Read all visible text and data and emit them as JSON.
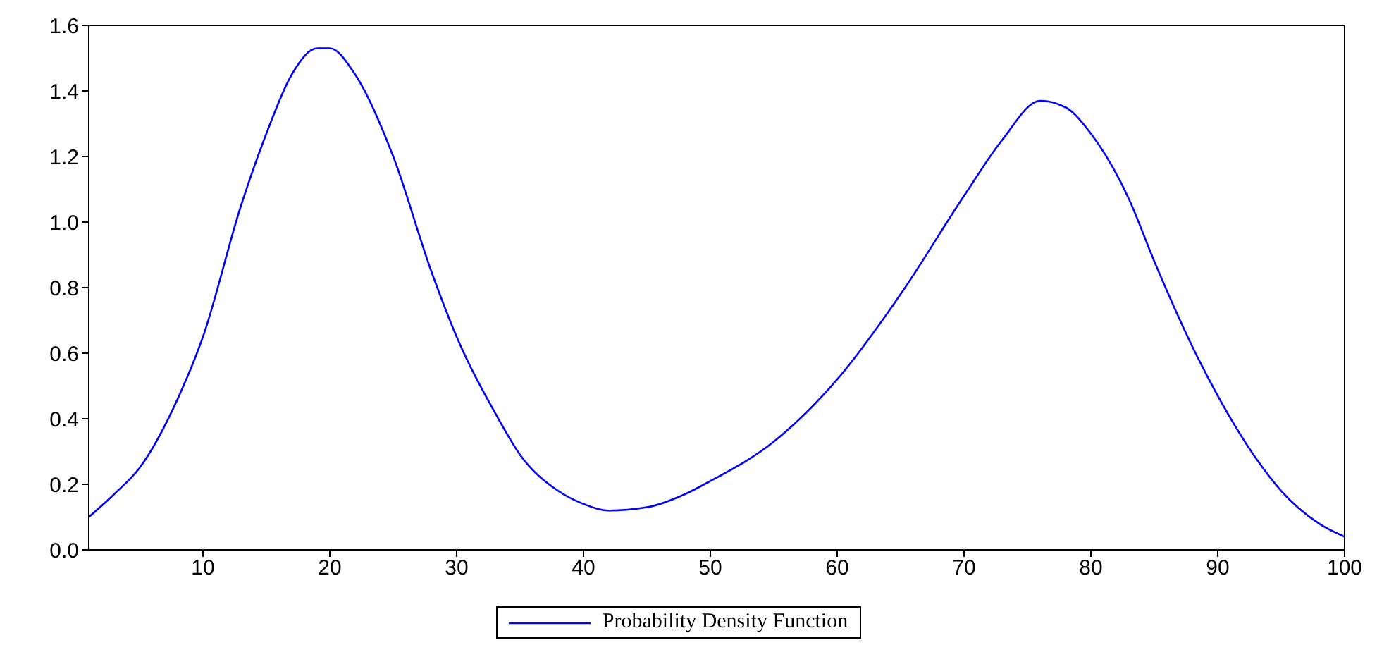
{
  "chart_data": {
    "type": "line",
    "x": [
      1,
      3,
      5,
      8,
      10,
      13,
      15,
      17,
      19,
      20,
      22,
      25,
      28,
      30,
      33,
      35,
      38,
      40,
      42,
      45,
      48,
      50,
      55,
      60,
      65,
      70,
      73,
      76,
      78,
      80,
      83,
      85,
      88,
      90,
      93,
      95,
      98,
      100
    ],
    "series": [
      {
        "name": "Probability Density Function",
        "color": "#0000ff",
        "values": [
          0.1,
          0.17,
          0.25,
          0.46,
          0.65,
          1.05,
          1.27,
          1.45,
          1.53,
          1.53,
          1.45,
          1.2,
          0.85,
          0.65,
          0.42,
          0.29,
          0.18,
          0.14,
          0.12,
          0.13,
          0.17,
          0.21,
          0.33,
          0.52,
          0.78,
          1.08,
          1.25,
          1.37,
          1.35,
          1.27,
          1.07,
          0.88,
          0.62,
          0.47,
          0.28,
          0.18,
          0.08,
          0.04
        ]
      }
    ],
    "xlim": [
      1,
      100
    ],
    "xticks": [
      10,
      20,
      30,
      40,
      50,
      60,
      70,
      80,
      90,
      100
    ],
    "ylim": [
      0,
      1.6
    ],
    "yticks": [
      {
        "value": 0,
        "label": "0.0"
      },
      {
        "value": 0.2,
        "label": "0.2"
      },
      {
        "value": 0.4,
        "label": "0.4"
      },
      {
        "value": 0.6,
        "label": "0.6"
      },
      {
        "value": 0.8,
        "label": "0.8"
      },
      {
        "value": 1,
        "label": "1.0"
      },
      {
        "value": 1.2,
        "label": "1.2"
      },
      {
        "value": 1.4,
        "label": "1.4"
      },
      {
        "value": 1.6,
        "label": "1.6"
      }
    ],
    "grid": false,
    "legend": "bottom",
    "marker": "none",
    "line_style": "solid"
  }
}
